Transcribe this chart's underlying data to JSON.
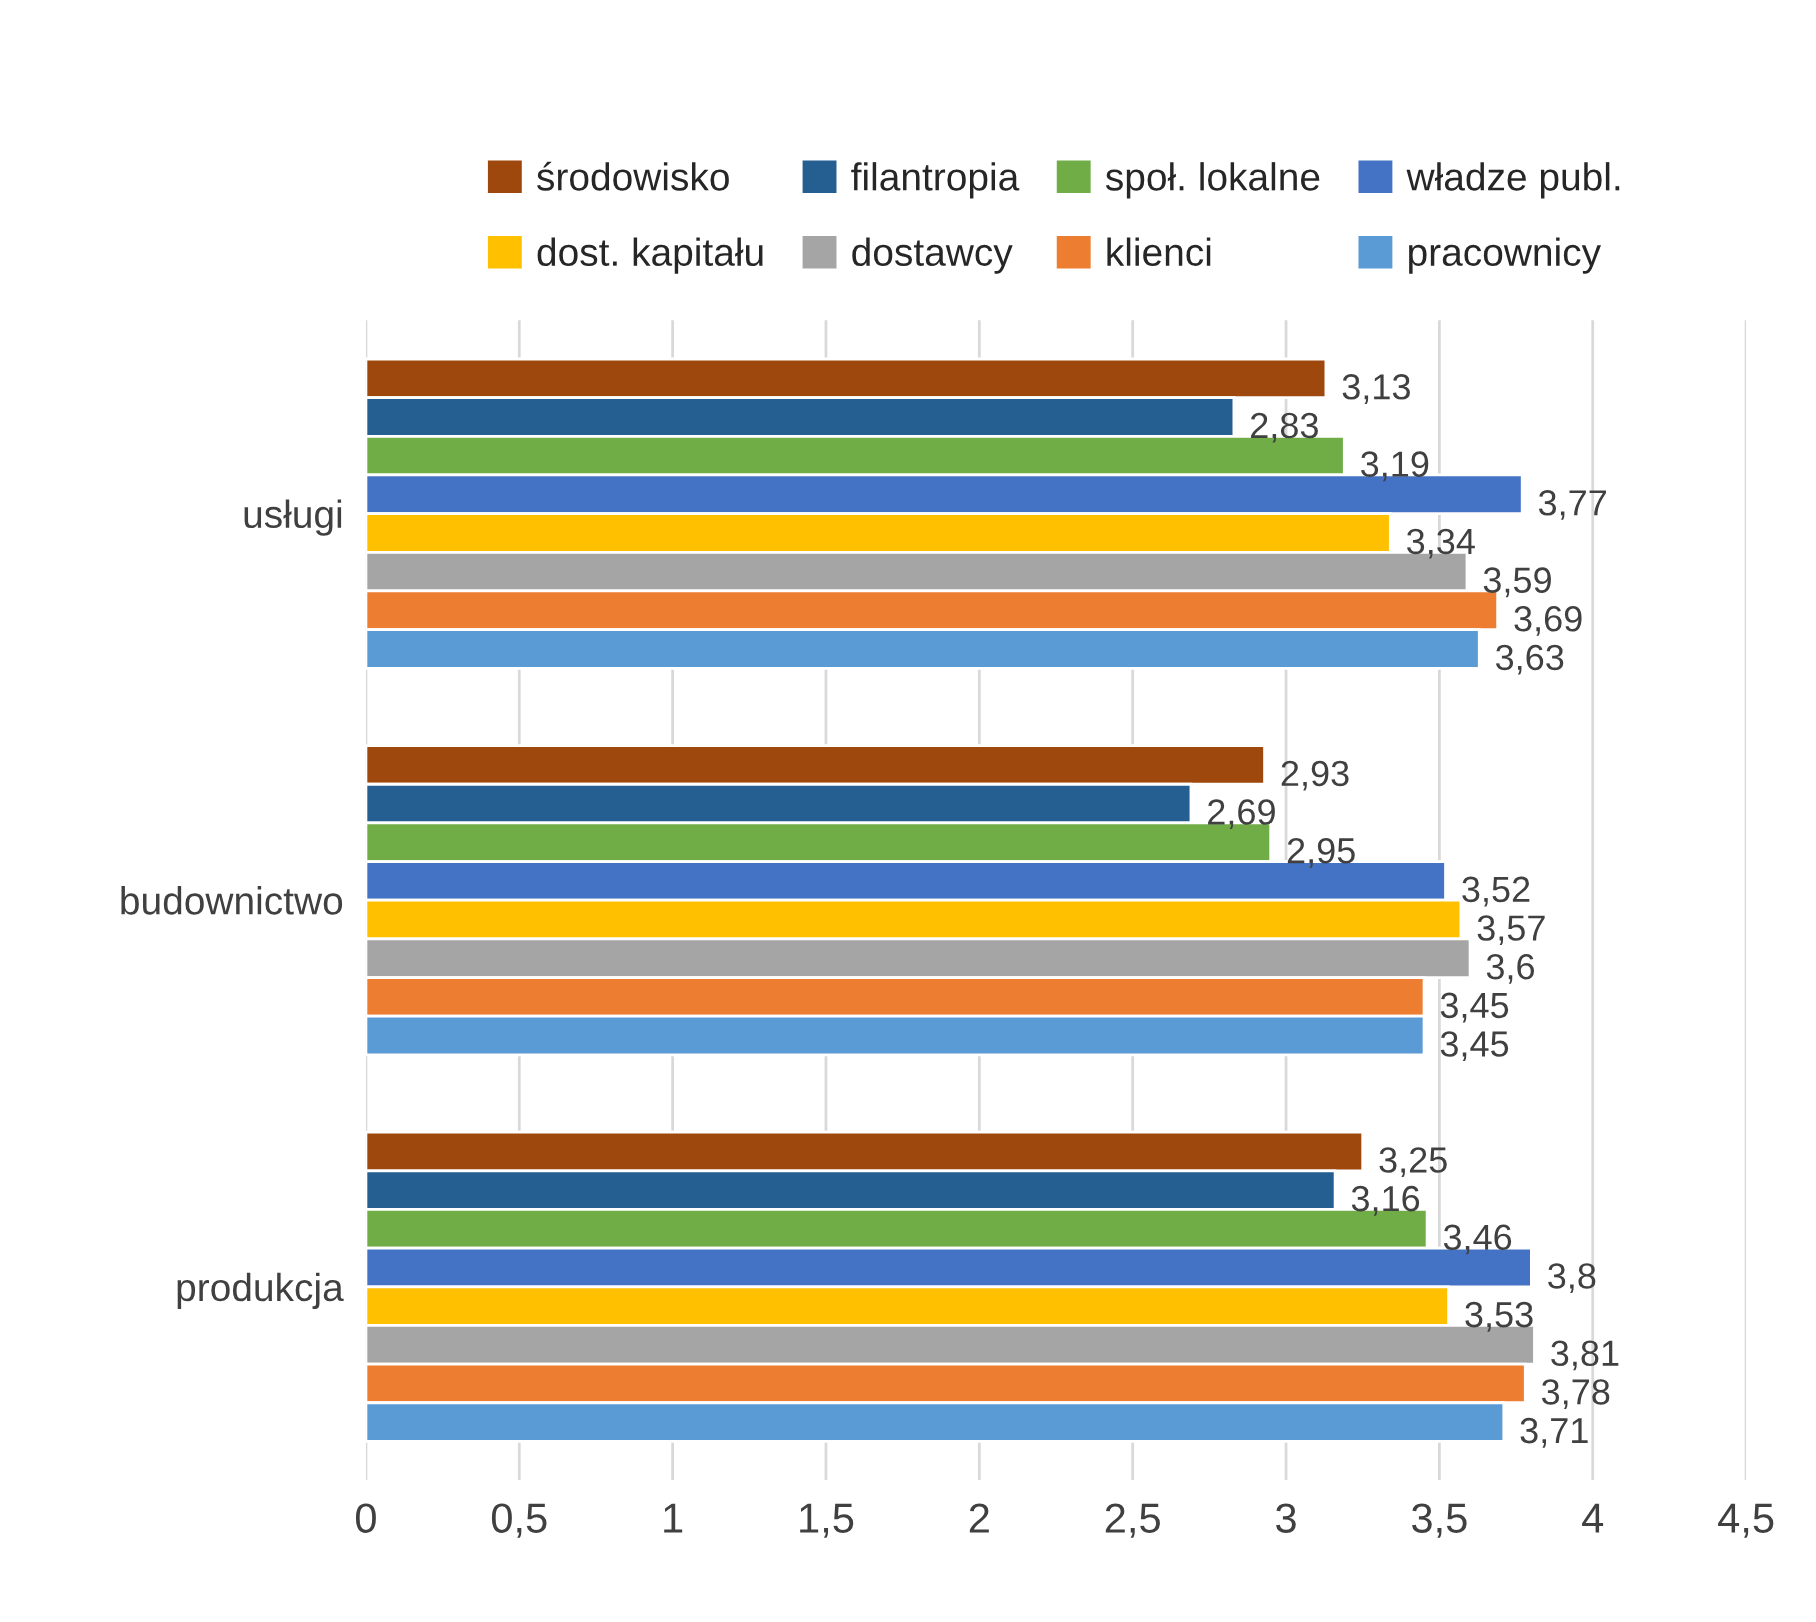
{
  "chart_data": {
    "type": "bar",
    "orientation": "horizontal",
    "categories": [
      "usługi",
      "budownictwo",
      "produkcja"
    ],
    "series": [
      {
        "name": "środowisko",
        "color": "#9e480e",
        "values": [
          3.13,
          2.93,
          3.25
        ],
        "value_labels": [
          "3,13",
          "2,93",
          "3,25"
        ]
      },
      {
        "name": "filantropia",
        "color": "#255e91",
        "values": [
          2.83,
          2.69,
          3.16
        ],
        "value_labels": [
          "2,83",
          "2,69",
          "3,16"
        ]
      },
      {
        "name": "społ. lokalne",
        "color": "#70ad47",
        "values": [
          3.19,
          2.95,
          3.46
        ],
        "value_labels": [
          "3,19",
          "2,95",
          "3,46"
        ]
      },
      {
        "name": "władze publ.",
        "color": "#4472c4",
        "values": [
          3.77,
          3.52,
          3.8
        ],
        "value_labels": [
          "3,77",
          "3,52",
          "3,8"
        ]
      },
      {
        "name": "dost. kapitału",
        "color": "#ffc000",
        "values": [
          3.34,
          3.57,
          3.53
        ],
        "value_labels": [
          "3,34",
          "3,57",
          "3,53"
        ]
      },
      {
        "name": "dostawcy",
        "color": "#a5a5a5",
        "values": [
          3.59,
          3.6,
          3.81
        ],
        "value_labels": [
          "3,59",
          "3,6",
          "3,81"
        ]
      },
      {
        "name": "klienci",
        "color": "#ed7d31",
        "values": [
          3.69,
          3.45,
          3.78
        ],
        "value_labels": [
          "3,69",
          "3,45",
          "3,78"
        ]
      },
      {
        "name": "pracownicy",
        "color": "#5b9bd5",
        "values": [
          3.63,
          3.45,
          3.71
        ],
        "value_labels": [
          "3,63",
          "3,45",
          "3,71"
        ]
      }
    ],
    "xlim": [
      0,
      4.5
    ],
    "xticks": [
      0,
      {
        "value": 0.5,
        "label": "0,5"
      },
      1,
      {
        "value": 1.5,
        "label": "1,5"
      },
      2,
      {
        "value": 2.5,
        "label": "2,5"
      },
      3,
      {
        "value": 3.5,
        "label": "3,5"
      },
      4,
      {
        "value": 4.5,
        "label": "4,5"
      }
    ],
    "grid": "x",
    "legend": "top"
  }
}
